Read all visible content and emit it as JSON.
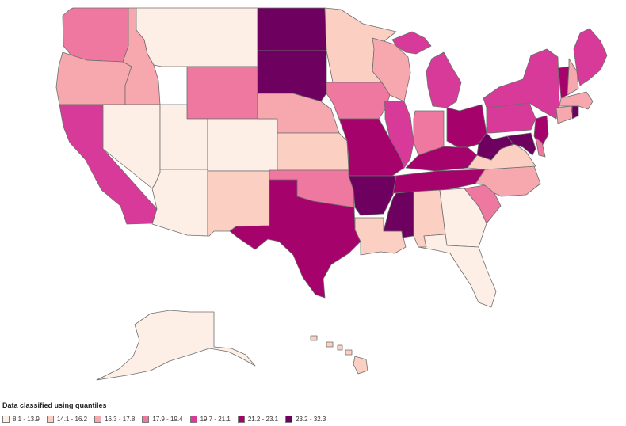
{
  "legend": {
    "title": "Data classified using quantiles",
    "classes": [
      {
        "label": "8.1 - 13.9",
        "color": "#fdeee6"
      },
      {
        "label": "14.1 - 16.2",
        "color": "#fbd0c2"
      },
      {
        "label": "16.3 - 17.8",
        "color": "#f6a8ae"
      },
      {
        "label": "17.9 - 19.4",
        "color": "#ef78a1"
      },
      {
        "label": "19.7 - 21.1",
        "color": "#d83a99"
      },
      {
        "label": "21.2 - 23.1",
        "color": "#a5026c"
      },
      {
        "label": "23.2 - 32.3",
        "color": "#6e015f"
      }
    ]
  },
  "states": [
    {
      "id": "WA",
      "class": 3
    },
    {
      "id": "OR",
      "class": 2
    },
    {
      "id": "CA",
      "class": 4
    },
    {
      "id": "ID",
      "class": 2
    },
    {
      "id": "NV",
      "class": 0
    },
    {
      "id": "MT",
      "class": 0
    },
    {
      "id": "WY",
      "class": 3
    },
    {
      "id": "UT",
      "class": 0
    },
    {
      "id": "AZ",
      "class": 0
    },
    {
      "id": "CO",
      "class": 0
    },
    {
      "id": "NM",
      "class": 1
    },
    {
      "id": "ND",
      "class": 6
    },
    {
      "id": "SD",
      "class": 6
    },
    {
      "id": "NE",
      "class": 2
    },
    {
      "id": "KS",
      "class": 1
    },
    {
      "id": "OK",
      "class": 3
    },
    {
      "id": "TX",
      "class": 5
    },
    {
      "id": "MN",
      "class": 1
    },
    {
      "id": "IA",
      "class": 3
    },
    {
      "id": "MO",
      "class": 5
    },
    {
      "id": "AR",
      "class": 6
    },
    {
      "id": "LA",
      "class": 1
    },
    {
      "id": "WI",
      "class": 2
    },
    {
      "id": "IL",
      "class": 4
    },
    {
      "id": "MI",
      "class": 4
    },
    {
      "id": "IN",
      "class": 3
    },
    {
      "id": "OH",
      "class": 5
    },
    {
      "id": "KY",
      "class": 5
    },
    {
      "id": "TN",
      "class": 5
    },
    {
      "id": "MS",
      "class": 6
    },
    {
      "id": "AL",
      "class": 1
    },
    {
      "id": "GA",
      "class": 0
    },
    {
      "id": "FL",
      "class": 0
    },
    {
      "id": "SC",
      "class": 3
    },
    {
      "id": "NC",
      "class": 2
    },
    {
      "id": "VA",
      "class": 1
    },
    {
      "id": "WV",
      "class": 6
    },
    {
      "id": "MD",
      "class": 6
    },
    {
      "id": "DE",
      "class": 3
    },
    {
      "id": "PA",
      "class": 4
    },
    {
      "id": "NJ",
      "class": 5
    },
    {
      "id": "NY",
      "class": 4
    },
    {
      "id": "CT",
      "class": 2
    },
    {
      "id": "RI",
      "class": 6
    },
    {
      "id": "MA",
      "class": 2
    },
    {
      "id": "VT",
      "class": 5
    },
    {
      "id": "NH",
      "class": 2
    },
    {
      "id": "ME",
      "class": 4
    },
    {
      "id": "AK",
      "class": 0
    },
    {
      "id": "HI",
      "class": 1
    }
  ]
}
